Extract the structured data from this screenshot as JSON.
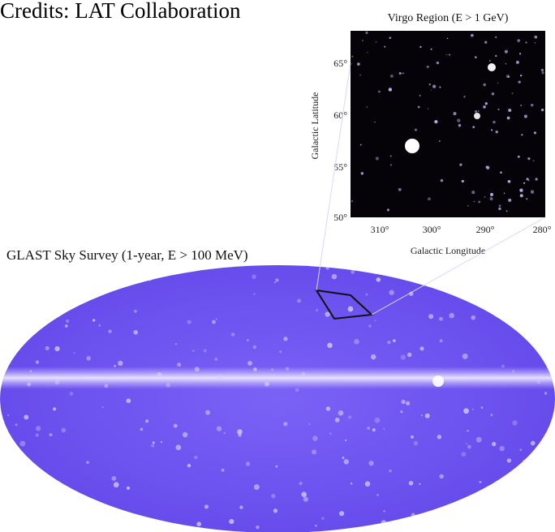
{
  "credit": "Credits: LAT Collaboration",
  "inset": {
    "title": "Virgo Region (E > 1 GeV)",
    "y_label": "Galactic Latitude",
    "x_label": "Galactic Longitude",
    "y_ticks": [
      "65°",
      "60°",
      "55°",
      "50°"
    ],
    "x_ticks": [
      "310°",
      "300°",
      "290°",
      "280°"
    ]
  },
  "survey_title": "GLAST Sky Survey (1-year, E > 100 MeV)"
}
